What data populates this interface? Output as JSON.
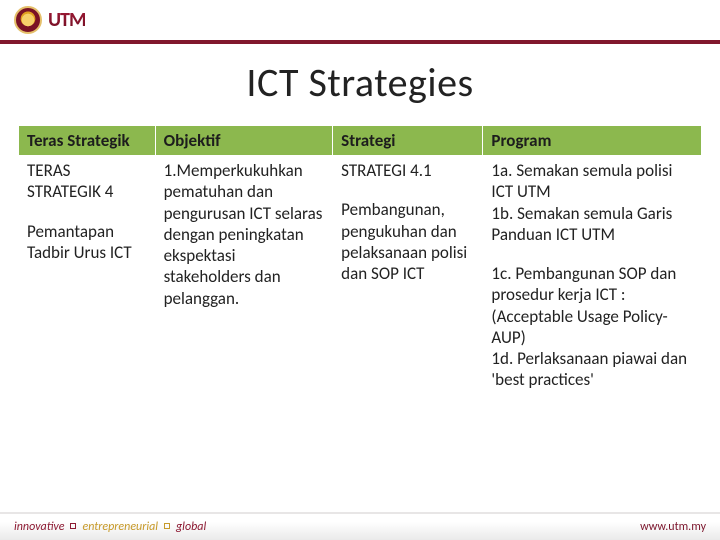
{
  "colors": {
    "brand_maroon": "#81172d",
    "table_header_bg": "#8cb84e",
    "text": "#222222",
    "footer_text": "#777777"
  },
  "logo_text": "UTM",
  "title": "ICT Strategies",
  "table": {
    "headers": [
      "Teras Strategik",
      "Objektif",
      "Strategi",
      "Program"
    ],
    "row": {
      "teras_title": "TERAS STRATEGIK 4",
      "teras_sub": "Pemantapan Tadbir Urus ICT",
      "objektif": "1.Memperkukuhkan pematuhan dan pengurusan ICT selaras dengan peningkatan ekspektasi stakeholders dan pelanggan.",
      "strategi_title": "STRATEGI 4.1",
      "strategi_body": "Pembangunan, pengukuhan dan pelaksanaan polisi dan SOP ICT",
      "program_a": "1a. Semakan semula polisi ICT UTM",
      "program_b": "1b. Semakan semula Garis Panduan ICT UTM",
      "program_c": "1c. Pembangunan SOP dan prosedur kerja ICT : (Acceptable Usage Policy- AUP)",
      "program_d": "1d. Perlaksanaan piawai dan            'best practices'"
    }
  },
  "footer": {
    "w1": "innovative",
    "w2": "entrepreneurial",
    "w3": "global",
    "url": "www.utm.my"
  }
}
